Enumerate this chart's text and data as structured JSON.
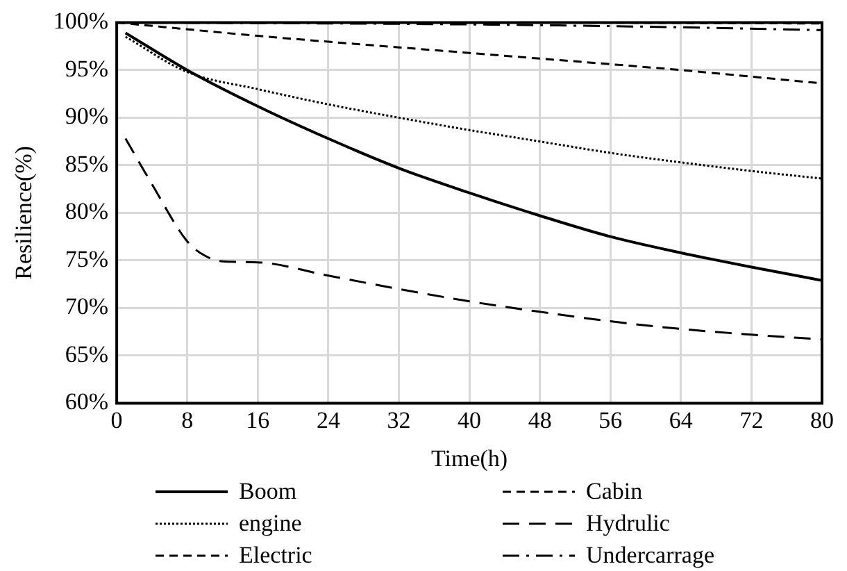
{
  "chart_data": {
    "type": "line",
    "xlabel": "Time(h)",
    "ylabel": "Resilience(%)",
    "xlim": [
      0,
      80
    ],
    "xticks": [
      0,
      8,
      16,
      24,
      32,
      40,
      48,
      56,
      64,
      72,
      80
    ],
    "ylim": [
      60,
      100
    ],
    "yticks": [
      {
        "value": 60,
        "label": "60%"
      },
      {
        "value": 65,
        "label": "65%"
      },
      {
        "value": 70,
        "label": "70%"
      },
      {
        "value": 75,
        "label": "75%"
      },
      {
        "value": 80,
        "label": "80%"
      },
      {
        "value": 85,
        "label": "85%"
      },
      {
        "value": 90,
        "label": "90%"
      },
      {
        "value": 95,
        "label": "95%"
      },
      {
        "value": 100,
        "label": "100%"
      }
    ],
    "grid": true,
    "legend": "bottom",
    "marker": "none",
    "series": [
      {
        "name": "Boom",
        "color": "#000000",
        "line_style": "solid",
        "x": [
          1,
          8,
          16,
          24,
          32,
          40,
          48,
          56,
          64,
          72,
          80
        ],
        "values": [
          98.9,
          95,
          91.2,
          87.8,
          84.7,
          82.1,
          79.7,
          77.5,
          75.8,
          74.3,
          72.9
        ]
      },
      {
        "name": "Cabin",
        "color": "#000000",
        "line_style": "dashed",
        "x": [
          0,
          40,
          80
        ],
        "values": [
          100,
          100,
          99.9
        ]
      },
      {
        "name": "engine",
        "color": "#000000",
        "line_style": "dotted",
        "x": [
          1,
          8,
          16,
          24,
          32,
          40,
          48,
          56,
          64,
          72,
          80
        ],
        "values": [
          98.5,
          94.8,
          93,
          91.4,
          90,
          88.7,
          87.5,
          86.3,
          85.3,
          84.4,
          83.6
        ]
      },
      {
        "name": "Hydrulic",
        "color": "#000000",
        "line_style": "longdash",
        "x": [
          1,
          4,
          8,
          10,
          12,
          16,
          24,
          32,
          40,
          48,
          56,
          64,
          72,
          80
        ],
        "values": [
          87.8,
          83,
          77,
          75.5,
          74.9,
          74.8,
          73.4,
          72,
          70.7,
          69.6,
          68.6,
          67.8,
          67.2,
          66.7
        ]
      },
      {
        "name": "Electric",
        "color": "#000000",
        "line_style": "dashed",
        "x": [
          0,
          16,
          40,
          64,
          80
        ],
        "values": [
          100,
          98.6,
          96.8,
          95,
          93.6
        ]
      },
      {
        "name": "Undercarrage",
        "color": "#000000",
        "line_style": "dashdot",
        "x": [
          0,
          40,
          64,
          80
        ],
        "values": [
          100,
          99.8,
          99.5,
          99.2
        ]
      }
    ]
  }
}
